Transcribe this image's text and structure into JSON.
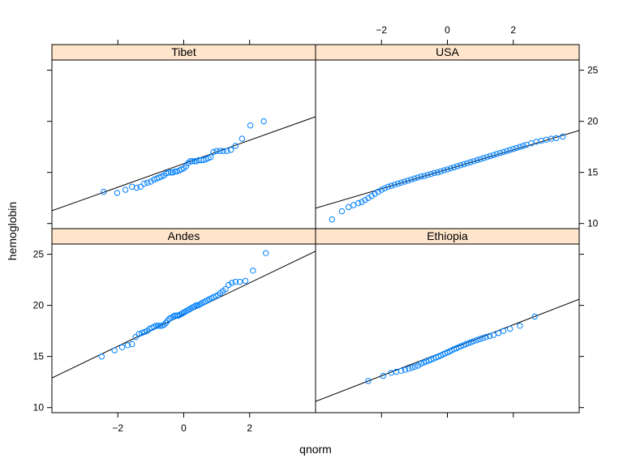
{
  "chart_data": {
    "type": "scatter",
    "xlabel": "qnorm",
    "ylabel": "hemoglobin",
    "xlim": [
      -4,
      4
    ],
    "ylim": [
      9.5,
      26
    ],
    "x_ticks": [
      -2,
      0,
      2
    ],
    "y_ticks": [
      10,
      15,
      20,
      25
    ],
    "grid": false,
    "point_color": "#0080ff",
    "strip_color": "#ffe5cc",
    "panels": [
      {
        "name": "Tibet",
        "line": {
          "slope": 1.15,
          "intercept": 15.85
        },
        "points": [
          [
            -2.43,
            13.1
          ],
          [
            -2.02,
            13.0
          ],
          [
            -1.77,
            13.3
          ],
          [
            -1.57,
            13.6
          ],
          [
            -1.43,
            13.5
          ],
          [
            -1.31,
            13.6
          ],
          [
            -1.2,
            13.9
          ],
          [
            -1.1,
            14.0
          ],
          [
            -1.0,
            14.1
          ],
          [
            -0.9,
            14.3
          ],
          [
            -0.82,
            14.4
          ],
          [
            -0.75,
            14.5
          ],
          [
            -0.68,
            14.6
          ],
          [
            -0.6,
            14.7
          ],
          [
            -0.53,
            14.9
          ],
          [
            -0.46,
            15.0
          ],
          [
            -0.39,
            15.0
          ],
          [
            -0.33,
            15.0
          ],
          [
            -0.26,
            15.1
          ],
          [
            -0.2,
            15.1
          ],
          [
            -0.13,
            15.2
          ],
          [
            -0.07,
            15.3
          ],
          [
            0.0,
            15.4
          ],
          [
            0.07,
            15.6
          ],
          [
            0.13,
            15.9
          ],
          [
            0.2,
            16.1
          ],
          [
            0.26,
            16.1
          ],
          [
            0.33,
            16.1
          ],
          [
            0.39,
            16.1
          ],
          [
            0.46,
            16.2
          ],
          [
            0.53,
            16.2
          ],
          [
            0.6,
            16.2
          ],
          [
            0.68,
            16.3
          ],
          [
            0.75,
            16.4
          ],
          [
            0.82,
            16.5
          ],
          [
            0.9,
            17.0
          ],
          [
            1.0,
            17.1
          ],
          [
            1.1,
            17.1
          ],
          [
            1.2,
            17.1
          ],
          [
            1.31,
            17.1
          ],
          [
            1.43,
            17.2
          ],
          [
            1.57,
            17.6
          ],
          [
            1.77,
            18.3
          ],
          [
            2.02,
            19.6
          ],
          [
            2.43,
            20.0
          ]
        ]
      },
      {
        "name": "USA",
        "line": {
          "slope": 0.95,
          "intercept": 15.3
        },
        "points": [
          [
            -3.5,
            10.4
          ],
          [
            -3.2,
            11.2
          ],
          [
            -3.0,
            11.6
          ],
          [
            -2.85,
            11.8
          ],
          [
            -2.7,
            12.0
          ],
          [
            -2.6,
            12.1
          ],
          [
            -2.5,
            12.3
          ],
          [
            -2.4,
            12.5
          ],
          [
            -2.3,
            12.7
          ],
          [
            -2.2,
            12.9
          ],
          [
            -2.1,
            13.1
          ],
          [
            -2.0,
            13.3
          ],
          [
            -1.9,
            13.45
          ],
          [
            -1.8,
            13.6
          ],
          [
            -1.7,
            13.7
          ],
          [
            -1.6,
            13.8
          ],
          [
            -1.5,
            13.9
          ],
          [
            -1.4,
            14.0
          ],
          [
            -1.3,
            14.1
          ],
          [
            -1.2,
            14.2
          ],
          [
            -1.1,
            14.3
          ],
          [
            -1.0,
            14.4
          ],
          [
            -0.9,
            14.5
          ],
          [
            -0.8,
            14.6
          ],
          [
            -0.7,
            14.65
          ],
          [
            -0.6,
            14.75
          ],
          [
            -0.5,
            14.85
          ],
          [
            -0.4,
            14.95
          ],
          [
            -0.3,
            15.0
          ],
          [
            -0.2,
            15.1
          ],
          [
            -0.1,
            15.2
          ],
          [
            0.0,
            15.3
          ],
          [
            0.1,
            15.4
          ],
          [
            0.2,
            15.5
          ],
          [
            0.3,
            15.6
          ],
          [
            0.4,
            15.7
          ],
          [
            0.5,
            15.8
          ],
          [
            0.6,
            15.9
          ],
          [
            0.7,
            16.0
          ],
          [
            0.8,
            16.1
          ],
          [
            0.9,
            16.2
          ],
          [
            1.0,
            16.3
          ],
          [
            1.1,
            16.4
          ],
          [
            1.2,
            16.5
          ],
          [
            1.3,
            16.6
          ],
          [
            1.4,
            16.7
          ],
          [
            1.5,
            16.8
          ],
          [
            1.6,
            16.9
          ],
          [
            1.7,
            17.0
          ],
          [
            1.8,
            17.1
          ],
          [
            1.9,
            17.2
          ],
          [
            2.0,
            17.3
          ],
          [
            2.1,
            17.4
          ],
          [
            2.2,
            17.5
          ],
          [
            2.3,
            17.6
          ],
          [
            2.4,
            17.7
          ],
          [
            2.55,
            17.85
          ],
          [
            2.7,
            18.0
          ],
          [
            2.85,
            18.1
          ],
          [
            3.0,
            18.2
          ],
          [
            3.15,
            18.3
          ],
          [
            3.3,
            18.35
          ],
          [
            3.5,
            18.5
          ]
        ]
      },
      {
        "name": "Andes",
        "line": {
          "slope": 1.55,
          "intercept": 19.1
        },
        "points": [
          [
            -2.49,
            15.0
          ],
          [
            -2.1,
            15.6
          ],
          [
            -1.87,
            15.9
          ],
          [
            -1.7,
            16.1
          ],
          [
            -1.57,
            16.2
          ],
          [
            -1.46,
            16.9
          ],
          [
            -1.36,
            17.2
          ],
          [
            -1.27,
            17.3
          ],
          [
            -1.19,
            17.4
          ],
          [
            -1.11,
            17.5
          ],
          [
            -1.04,
            17.7
          ],
          [
            -0.97,
            17.8
          ],
          [
            -0.9,
            17.9
          ],
          [
            -0.84,
            18.0
          ],
          [
            -0.78,
            18.0
          ],
          [
            -0.72,
            18.0
          ],
          [
            -0.66,
            18.0
          ],
          [
            -0.6,
            18.1
          ],
          [
            -0.54,
            18.3
          ],
          [
            -0.49,
            18.5
          ],
          [
            -0.43,
            18.7
          ],
          [
            -0.38,
            18.8
          ],
          [
            -0.32,
            18.9
          ],
          [
            -0.27,
            19.0
          ],
          [
            -0.21,
            19.0
          ],
          [
            -0.16,
            19.0
          ],
          [
            -0.11,
            19.1
          ],
          [
            -0.05,
            19.2
          ],
          [
            0.0,
            19.3
          ],
          [
            0.05,
            19.4
          ],
          [
            0.11,
            19.5
          ],
          [
            0.16,
            19.6
          ],
          [
            0.21,
            19.7
          ],
          [
            0.27,
            19.8
          ],
          [
            0.32,
            19.9
          ],
          [
            0.38,
            20.0
          ],
          [
            0.43,
            20.0
          ],
          [
            0.49,
            20.1
          ],
          [
            0.54,
            20.2
          ],
          [
            0.6,
            20.3
          ],
          [
            0.66,
            20.4
          ],
          [
            0.72,
            20.5
          ],
          [
            0.78,
            20.6
          ],
          [
            0.84,
            20.7
          ],
          [
            0.9,
            20.8
          ],
          [
            0.97,
            20.9
          ],
          [
            1.04,
            21.0
          ],
          [
            1.11,
            21.2
          ],
          [
            1.19,
            21.4
          ],
          [
            1.27,
            21.6
          ],
          [
            1.36,
            22.0
          ],
          [
            1.46,
            22.2
          ],
          [
            1.57,
            22.3
          ],
          [
            1.7,
            22.3
          ],
          [
            1.87,
            22.4
          ],
          [
            2.1,
            23.4
          ],
          [
            2.49,
            25.1
          ]
        ]
      },
      {
        "name": "Ethiopia",
        "line": {
          "slope": 1.25,
          "intercept": 15.6
        },
        "points": [
          [
            -2.4,
            12.6
          ],
          [
            -1.95,
            13.1
          ],
          [
            -1.7,
            13.4
          ],
          [
            -1.55,
            13.5
          ],
          [
            -1.4,
            13.6
          ],
          [
            -1.28,
            13.7
          ],
          [
            -1.17,
            13.8
          ],
          [
            -1.07,
            13.9
          ],
          [
            -0.98,
            14.0
          ],
          [
            -0.89,
            14.1
          ],
          [
            -0.8,
            14.3
          ],
          [
            -0.72,
            14.4
          ],
          [
            -0.64,
            14.5
          ],
          [
            -0.56,
            14.6
          ],
          [
            -0.49,
            14.7
          ],
          [
            -0.41,
            14.8
          ],
          [
            -0.34,
            14.9
          ],
          [
            -0.27,
            15.0
          ],
          [
            -0.2,
            15.1
          ],
          [
            -0.13,
            15.2
          ],
          [
            -0.07,
            15.3
          ],
          [
            0.0,
            15.4
          ],
          [
            0.07,
            15.5
          ],
          [
            0.13,
            15.6
          ],
          [
            0.2,
            15.7
          ],
          [
            0.27,
            15.8
          ],
          [
            0.34,
            15.9
          ],
          [
            0.41,
            16.0
          ],
          [
            0.49,
            16.1
          ],
          [
            0.56,
            16.2
          ],
          [
            0.64,
            16.3
          ],
          [
            0.72,
            16.4
          ],
          [
            0.8,
            16.5
          ],
          [
            0.89,
            16.6
          ],
          [
            0.98,
            16.7
          ],
          [
            1.07,
            16.8
          ],
          [
            1.17,
            16.9
          ],
          [
            1.28,
            17.0
          ],
          [
            1.4,
            17.1
          ],
          [
            1.55,
            17.3
          ],
          [
            1.7,
            17.5
          ],
          [
            1.9,
            17.7
          ],
          [
            2.2,
            18.0
          ],
          [
            2.65,
            18.9
          ]
        ]
      }
    ]
  }
}
